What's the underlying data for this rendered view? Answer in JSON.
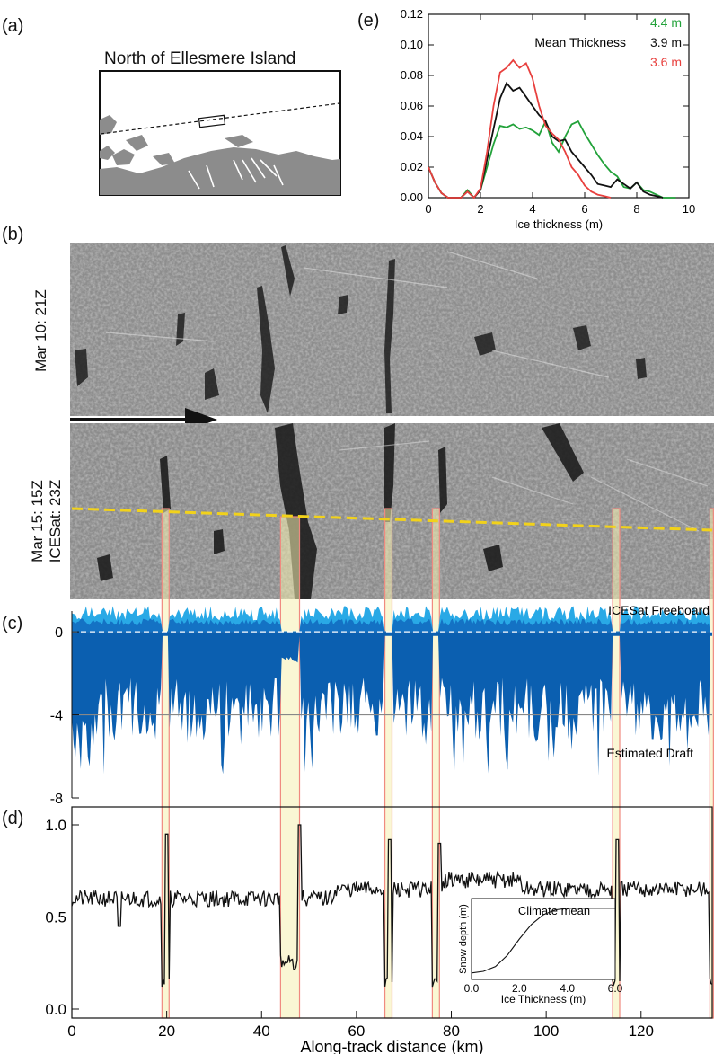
{
  "panels": {
    "a": "(a)",
    "b": "(b)",
    "c": "(c)",
    "d": "(d)",
    "e": "(e)"
  },
  "map": {
    "title": "North of Ellesmere Island"
  },
  "imagery": {
    "top_label": "Mar 10: 21Z",
    "bottom_label_1": "Mar 15: 15Z",
    "bottom_label_2": "ICESat: 23Z"
  },
  "colors": {
    "freeboard_light": "#29a9e6",
    "freeboard_dark": "#1472c4",
    "draft": "#0b5fb0",
    "highlight": "#f5f0b0",
    "highlight_edge": "#f08a80",
    "icesat_track": "#f2d21a",
    "green": "#22a23a",
    "red": "#e8403e"
  },
  "chart_data": [
    {
      "id": "e",
      "type": "line",
      "title": "",
      "xlabel": "Ice thickness (m)",
      "ylabel": "",
      "xlim": [
        0,
        10
      ],
      "ylim": [
        0,
        0.12
      ],
      "xticks": [
        "0",
        "2",
        "4",
        "6",
        "8",
        "10"
      ],
      "yticks": [
        "0.00",
        "0.02",
        "0.04",
        "0.06",
        "0.08",
        "0.10",
        "0.12"
      ],
      "annotation": "Mean Thickness",
      "series": [
        {
          "name": "4.4 m",
          "color": "#22a23a",
          "x": [
            0,
            0.25,
            0.5,
            0.75,
            1,
            1.25,
            1.5,
            1.75,
            2,
            2.25,
            2.5,
            2.75,
            3,
            3.25,
            3.5,
            3.75,
            4,
            4.25,
            4.5,
            4.75,
            5,
            5.25,
            5.5,
            5.75,
            6,
            6.25,
            6.5,
            6.75,
            7,
            7.25,
            7.5,
            7.75,
            8,
            8.25,
            8.5,
            8.75,
            9,
            9.25,
            9.5
          ],
          "y": [
            0.02,
            0.01,
            0.003,
            0,
            0,
            0,
            0.005,
            0,
            0.005,
            0.02,
            0.035,
            0.047,
            0.046,
            0.048,
            0.045,
            0.046,
            0.044,
            0.041,
            0.05,
            0.036,
            0.03,
            0.04,
            0.048,
            0.05,
            0.042,
            0.035,
            0.028,
            0.022,
            0.017,
            0.014,
            0.007,
            0.006,
            0.01,
            0.005,
            0.004,
            0.002,
            0.0,
            0.0,
            0.0
          ]
        },
        {
          "name": "3.9 m",
          "color": "#111111",
          "x": [
            0,
            0.25,
            0.5,
            0.75,
            1,
            1.25,
            1.5,
            1.75,
            2,
            2.25,
            2.5,
            2.75,
            3,
            3.25,
            3.5,
            3.75,
            4,
            4.25,
            4.5,
            4.75,
            5,
            5.25,
            5.5,
            5.75,
            6,
            6.25,
            6.5,
            6.75,
            7,
            7.25,
            7.5,
            7.75,
            8,
            8.25,
            8.5,
            8.75,
            9
          ],
          "y": [
            0.02,
            0.01,
            0.003,
            0,
            0,
            0,
            0.004,
            0,
            0.005,
            0.025,
            0.045,
            0.065,
            0.075,
            0.07,
            0.072,
            0.066,
            0.06,
            0.054,
            0.05,
            0.04,
            0.037,
            0.038,
            0.03,
            0.025,
            0.02,
            0.015,
            0.009,
            0.008,
            0.007,
            0.012,
            0.009,
            0.006,
            0.01,
            0.004,
            0.002,
            0.001,
            0.0
          ]
        },
        {
          "name": "3.6 m",
          "color": "#e8403e",
          "x": [
            0,
            0.25,
            0.5,
            0.75,
            1,
            1.25,
            1.5,
            1.75,
            2,
            2.25,
            2.5,
            2.75,
            3,
            3.25,
            3.5,
            3.75,
            4,
            4.25,
            4.5,
            4.75,
            5,
            5.25,
            5.5,
            5.75,
            6,
            6.25,
            6.5,
            6.75,
            7
          ],
          "y": [
            0.02,
            0.01,
            0.003,
            0,
            0,
            0,
            0.004,
            0,
            0.006,
            0.03,
            0.06,
            0.082,
            0.085,
            0.09,
            0.085,
            0.088,
            0.078,
            0.06,
            0.047,
            0.042,
            0.038,
            0.03,
            0.02,
            0.015,
            0.008,
            0.004,
            0.002,
            0.001,
            0.0
          ]
        }
      ]
    },
    {
      "id": "c",
      "type": "area",
      "series_labels": [
        "ICESat Freeboard",
        "Estimated Draft"
      ],
      "ylim": [
        -8,
        1
      ],
      "yticks": [
        "0",
        "-4",
        "-8"
      ],
      "xlim": [
        0,
        135
      ],
      "reference_lines": [
        0,
        -4
      ]
    },
    {
      "id": "d",
      "type": "line",
      "xlabel": "Along-track distance (km)",
      "xlim": [
        0,
        135
      ],
      "ylim": [
        0,
        1.0
      ],
      "xticks": [
        "0",
        "20",
        "40",
        "60",
        "80",
        "100",
        "120"
      ],
      "yticks": [
        "0.0",
        "0.5",
        "1.0"
      ],
      "leads_km": [
        [
          19,
          20.5
        ],
        [
          44,
          48
        ],
        [
          66,
          67.5
        ],
        [
          76,
          77.5
        ],
        [
          114,
          115.5
        ],
        [
          134.5,
          135
        ]
      ],
      "spikes": [
        [
          20,
          0.95
        ],
        [
          48,
          1.0
        ],
        [
          67,
          0.92
        ],
        [
          77.5,
          0.9
        ],
        [
          115,
          0.92
        ]
      ],
      "inset": {
        "title": "Climate mean",
        "xlabel": "Ice Thickness (m)",
        "ylabel": "Snow depth (m)",
        "xticks": [
          "0.0",
          "2.0",
          "4.0",
          "6.0"
        ],
        "x": [
          0,
          0.5,
          1,
          1.5,
          2,
          2.5,
          3,
          3.5,
          4,
          5,
          6
        ],
        "y": [
          0.08,
          0.1,
          0.16,
          0.3,
          0.5,
          0.68,
          0.8,
          0.86,
          0.88,
          0.88,
          0.88
        ]
      }
    }
  ]
}
